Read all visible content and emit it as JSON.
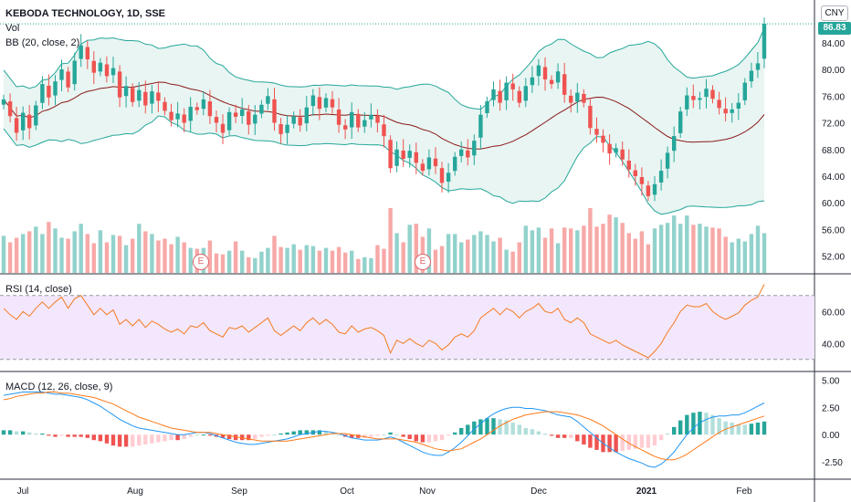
{
  "header": {
    "symbol_title": "KEBODA TECHNOLOGY, 1D, SSE",
    "vol_label": "Vol",
    "bb_label": "BB (20, close, 2)",
    "currency_button": "CNY",
    "last_price": "86.83"
  },
  "rsi": {
    "label": "RSI (14, close)"
  },
  "macd": {
    "label": "MACD (12, 26, close, 9)"
  },
  "earnings_markers": [
    {
      "label": "E",
      "month": "Aug"
    },
    {
      "label": "E",
      "month": "Nov"
    }
  ],
  "colors": {
    "up": "#26a69a",
    "down": "#ef5350",
    "bb_fill": "#e6f4f1",
    "bb_band": "#26a69a",
    "bb_mid": "#8b1a1a",
    "rsi_line": "#f47b20",
    "rsi_bg": "#f3e7fd",
    "macd_line": "#2196f3",
    "signal_line": "#ff7a1a"
  },
  "chart_data": [
    {
      "type": "candlestick",
      "pane": "price",
      "price_axis": [
        "52.00",
        "56.00",
        "60.00",
        "64.00",
        "68.00",
        "72.00",
        "76.00",
        "80.00",
        "84.00"
      ],
      "price_range": [
        49.5,
        87.8
      ],
      "x_axis": [
        "Jul",
        "Aug",
        "Sep",
        "Oct",
        "Nov",
        "Dec",
        "2021",
        "Feb"
      ],
      "last_close": 86.83,
      "close_series": [
        75.5,
        73.0,
        70.5,
        73.5,
        71.2,
        74.6,
        77.8,
        75.8,
        78.2,
        80.0,
        77.3,
        81.3,
        83.6,
        81.5,
        79.5,
        81.0,
        79.0,
        80.2,
        75.8,
        77.5,
        75.1,
        76.9,
        74.6,
        76.7,
        75.3,
        73.8,
        72.4,
        73.4,
        72.0,
        74.4,
        73.9,
        75.5,
        73.0,
        72.0,
        70.5,
        73.6,
        72.9,
        74.0,
        71.7,
        73.2,
        74.7,
        76.0,
        72.0,
        70.3,
        71.7,
        73.0,
        71.6,
        74.3,
        76.1,
        74.1,
        75.7,
        74.3,
        71.7,
        71.0,
        73.6,
        71.3,
        72.4,
        73.2,
        72.0,
        70.0,
        65.2,
        68.0,
        66.6,
        67.8,
        66.0,
        64.8,
        66.8,
        65.5,
        63.0,
        64.5,
        66.9,
        68.0,
        66.8,
        69.3,
        73.2,
        75.2,
        77.0,
        75.0,
        78.0,
        77.0,
        75.0,
        77.5,
        78.8,
        80.6,
        78.5,
        77.8,
        79.7,
        76.2,
        75.0,
        76.5,
        75.0,
        71.2,
        70.2,
        69.0,
        67.4,
        68.2,
        66.5,
        65.0,
        64.0,
        62.8,
        61.0,
        62.8,
        64.8,
        67.5,
        70.0,
        73.7,
        76.1,
        75.4,
        75.7,
        77.1,
        75.6,
        74.2,
        73.4,
        74.0,
        75.0,
        78.0,
        79.8,
        80.9,
        86.83
      ],
      "volume_series": [
        40,
        33,
        38,
        42,
        45,
        50,
        42,
        55,
        48,
        38,
        37,
        45,
        53,
        42,
        32,
        46,
        33,
        41,
        40,
        30,
        37,
        53,
        45,
        42,
        35,
        37,
        31,
        39,
        33,
        27,
        26,
        27,
        35,
        21,
        20,
        24,
        34,
        24,
        17,
        16,
        23,
        27,
        40,
        28,
        27,
        31,
        25,
        30,
        29,
        24,
        27,
        24,
        28,
        22,
        24,
        15,
        17,
        16,
        30,
        26,
        70,
        43,
        33,
        52,
        53,
        39,
        48,
        25,
        29,
        42,
        42,
        33,
        36,
        41,
        45,
        41,
        34,
        38,
        25,
        23,
        33,
        51,
        46,
        49,
        38,
        48,
        32,
        49,
        48,
        46,
        51,
        70,
        50,
        53,
        63,
        60,
        54,
        43,
        37,
        45,
        31,
        48,
        52,
        54,
        62,
        53,
        62,
        52,
        53,
        50,
        49,
        48,
        39,
        33,
        37,
        34,
        42,
        51,
        43
      ]
    },
    {
      "type": "line",
      "pane": "rsi",
      "axis": [
        "40.00",
        "60.00"
      ],
      "range": [
        23,
        83
      ],
      "bands": [
        30,
        70
      ],
      "series": [
        {
          "name": "RSI (14, close)",
          "values": [
            62,
            58,
            55,
            60,
            57,
            62,
            66,
            62,
            66,
            69,
            62,
            68,
            70,
            64,
            58,
            62,
            58,
            61,
            52,
            55,
            51,
            55,
            50,
            54,
            52,
            49,
            47,
            49,
            46,
            51,
            50,
            53,
            48,
            46,
            44,
            50,
            49,
            51,
            47,
            50,
            53,
            56,
            48,
            45,
            48,
            51,
            48,
            53,
            56,
            52,
            55,
            52,
            47,
            46,
            51,
            47,
            49,
            50,
            48,
            45,
            34,
            42,
            40,
            43,
            40,
            38,
            42,
            40,
            36,
            39,
            44,
            46,
            44,
            48,
            56,
            59,
            62,
            58,
            62,
            60,
            56,
            60,
            62,
            65,
            60,
            59,
            62,
            55,
            53,
            56,
            53,
            46,
            44,
            42,
            40,
            42,
            39,
            37,
            35,
            33,
            31,
            35,
            40,
            47,
            53,
            60,
            64,
            63,
            63,
            65,
            60,
            57,
            55,
            57,
            59,
            64,
            67,
            69,
            77
          ]
        }
      ]
    },
    {
      "type": "line",
      "pane": "macd",
      "axis": [
        "-2.50",
        "0.00",
        "2.50",
        "5.00"
      ],
      "range": [
        -4.0,
        5.7
      ],
      "series": [
        {
          "name": "MACD",
          "values": [
            3.6,
            3.7,
            3.8,
            3.9,
            3.9,
            3.9,
            3.9,
            3.8,
            3.7,
            3.7,
            3.6,
            3.5,
            3.4,
            3.2,
            2.9,
            2.6,
            2.2,
            1.8,
            1.4,
            1.1,
            0.8,
            0.6,
            0.5,
            0.4,
            0.3,
            0.2,
            0.1,
            0.0,
            0.0,
            0.1,
            0.2,
            0.2,
            0.1,
            -0.1,
            -0.3,
            -0.5,
            -0.7,
            -0.8,
            -0.9,
            -0.9,
            -0.8,
            -0.7,
            -0.6,
            -0.5,
            -0.4,
            -0.2,
            0.0,
            0.1,
            0.2,
            0.3,
            0.3,
            0.2,
            0.1,
            -0.1,
            -0.3,
            -0.4,
            -0.5,
            -0.5,
            -0.5,
            -0.4,
            -0.2,
            -0.4,
            -0.7,
            -1.0,
            -1.3,
            -1.6,
            -1.8,
            -1.9,
            -1.9,
            -1.6,
            -1.2,
            -0.7,
            -0.1,
            0.5,
            1.0,
            1.5,
            1.9,
            2.2,
            2.4,
            2.5,
            2.5,
            2.4,
            2.4,
            2.3,
            2.2,
            2.0,
            1.8,
            1.7,
            1.6,
            1.2,
            0.7,
            0.2,
            -0.3,
            -0.8,
            -1.2,
            -1.6,
            -1.9,
            -2.2,
            -2.4,
            -2.6,
            -2.9,
            -3.0,
            -2.7,
            -2.2,
            -1.6,
            -0.8,
            0.0,
            0.6,
            1.1,
            1.4,
            1.6,
            1.7,
            1.7,
            1.8,
            1.8,
            2.0,
            2.3,
            2.6,
            2.9
          ]
        },
        {
          "name": "Signal",
          "values": [
            3.2,
            3.3,
            3.5,
            3.6,
            3.7,
            3.8,
            3.8,
            3.9,
            3.9,
            3.8,
            3.8,
            3.7,
            3.6,
            3.5,
            3.4,
            3.2,
            3.0,
            2.8,
            2.5,
            2.2,
            1.9,
            1.6,
            1.4,
            1.2,
            1.0,
            0.8,
            0.6,
            0.5,
            0.4,
            0.3,
            0.2,
            0.2,
            0.2,
            0.1,
            0.0,
            -0.1,
            -0.2,
            -0.3,
            -0.4,
            -0.5,
            -0.6,
            -0.6,
            -0.6,
            -0.6,
            -0.6,
            -0.5,
            -0.4,
            -0.3,
            -0.2,
            -0.1,
            0.0,
            0.1,
            0.1,
            0.1,
            0.0,
            -0.1,
            -0.2,
            -0.3,
            -0.4,
            -0.4,
            -0.4,
            -0.4,
            -0.5,
            -0.6,
            -0.7,
            -0.9,
            -1.1,
            -1.3,
            -1.4,
            -1.5,
            -1.4,
            -1.3,
            -1.0,
            -0.7,
            -0.4,
            0.0,
            0.4,
            0.8,
            1.1,
            1.4,
            1.6,
            1.8,
            1.9,
            2.0,
            2.1,
            2.1,
            2.1,
            2.0,
            1.9,
            1.8,
            1.6,
            1.4,
            1.1,
            0.8,
            0.4,
            0.0,
            -0.4,
            -0.8,
            -1.1,
            -1.4,
            -1.7,
            -2.0,
            -2.2,
            -2.3,
            -2.3,
            -2.1,
            -1.8,
            -1.4,
            -1.0,
            -0.6,
            -0.2,
            0.2,
            0.5,
            0.7,
            0.9,
            1.1,
            1.3,
            1.5,
            1.7
          ]
        }
      ]
    }
  ]
}
